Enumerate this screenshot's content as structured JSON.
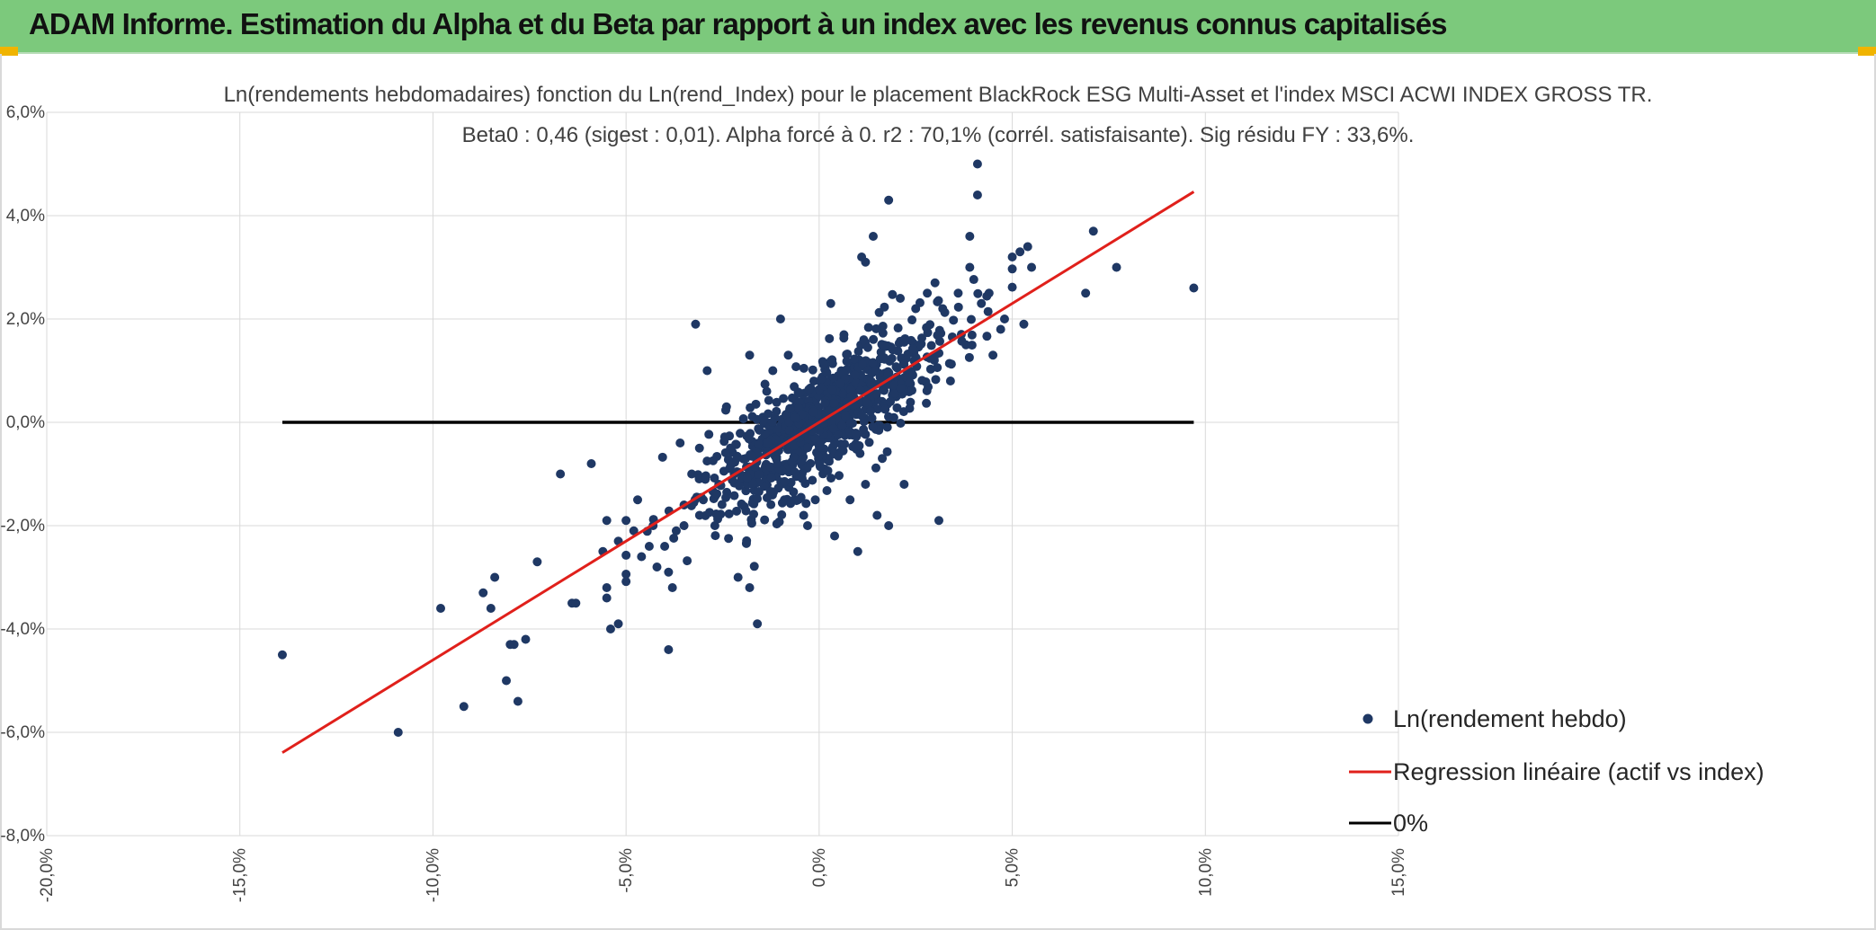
{
  "banner": {
    "title": "ADAM Informe. Estimation du Alpha et du Beta par rapport à un index avec les revenus connus capitalisés",
    "background": "#7cc97c"
  },
  "chart_data": {
    "type": "scatter",
    "title_line1": "Ln(rendements hebdomadaires) fonction du Ln(rend_Index) pour le placement BlackRock ESG Multi-Asset et l'index MSCI ACWI INDEX GROSS TR.",
    "title_line2": "Beta0 : 0,46 (sigest : 0,01). Alpha forcé à 0. r2 : 70,1% (corrél. satisfaisante). Sig résidu FY : 33,6%.",
    "xlim": [
      -0.2,
      0.15
    ],
    "ylim": [
      -0.08,
      0.06
    ],
    "x_ticks": [
      -0.2,
      -0.15,
      -0.1,
      -0.05,
      0.0,
      0.05,
      0.1,
      0.15
    ],
    "x_tick_labels": [
      "-20,0%",
      "-15,0%",
      "-10,0%",
      "-5,0%",
      "0,0%",
      "5,0%",
      "10,0%",
      "15,0%"
    ],
    "y_ticks": [
      0.06,
      0.04,
      0.02,
      0.0,
      -0.02,
      -0.04,
      -0.06,
      -0.08
    ],
    "y_tick_labels": [
      "6,0%",
      "4,0%",
      "2,0%",
      "0,0%",
      "-2,0%",
      "-4,0%",
      "-6,0%",
      "-8,0%"
    ],
    "grid": true,
    "legend_position": "bottom-right",
    "series": [
      {
        "name": "Ln(rendement hebdo)",
        "kind": "points",
        "color": "#1f3864",
        "points": [
          [
            -0.139,
            -0.045
          ],
          [
            -0.109,
            -0.06
          ],
          [
            -0.098,
            -0.036
          ],
          [
            -0.092,
            -0.055
          ],
          [
            -0.087,
            -0.033
          ],
          [
            -0.085,
            -0.036
          ],
          [
            -0.084,
            -0.03
          ],
          [
            -0.081,
            -0.05
          ],
          [
            -0.08,
            -0.043
          ],
          [
            -0.079,
            -0.043
          ],
          [
            -0.078,
            -0.054
          ],
          [
            -0.076,
            -0.042
          ],
          [
            -0.073,
            -0.027
          ],
          [
            -0.067,
            -0.01
          ],
          [
            -0.064,
            -0.035
          ],
          [
            -0.063,
            -0.035
          ],
          [
            -0.059,
            -0.008
          ],
          [
            -0.056,
            -0.025
          ],
          [
            -0.055,
            -0.032
          ],
          [
            -0.055,
            -0.034
          ],
          [
            -0.054,
            -0.04
          ],
          [
            -0.052,
            -0.039
          ],
          [
            -0.055,
            -0.019
          ],
          [
            -0.052,
            -0.023
          ],
          [
            -0.05,
            -0.019
          ],
          [
            -0.048,
            -0.021
          ],
          [
            -0.047,
            -0.015
          ],
          [
            -0.046,
            -0.026
          ],
          [
            -0.044,
            -0.024
          ],
          [
            -0.043,
            -0.02
          ],
          [
            -0.042,
            -0.028
          ],
          [
            -0.04,
            -0.024
          ],
          [
            -0.039,
            -0.029
          ],
          [
            -0.038,
            -0.032
          ],
          [
            -0.036,
            -0.004
          ],
          [
            -0.039,
            -0.044
          ],
          [
            -0.037,
            -0.021
          ],
          [
            -0.035,
            -0.02
          ],
          [
            -0.035,
            -0.016
          ],
          [
            -0.033,
            -0.01
          ],
          [
            -0.032,
            0.019
          ],
          [
            -0.031,
            -0.005
          ],
          [
            -0.03,
            -0.015
          ],
          [
            -0.029,
            0.01
          ],
          [
            -0.027,
            -0.02
          ],
          [
            -0.026,
            -0.012
          ],
          [
            -0.024,
            0.003
          ],
          [
            -0.022,
            -0.01
          ],
          [
            -0.021,
            -0.03
          ],
          [
            -0.019,
            -0.007
          ],
          [
            -0.018,
            0.013
          ],
          [
            -0.018,
            -0.032
          ],
          [
            -0.016,
            -0.039
          ],
          [
            -0.014,
            -0.005
          ],
          [
            -0.012,
            0.01
          ],
          [
            -0.01,
            0.02
          ],
          [
            -0.009,
            -0.015
          ],
          [
            -0.008,
            0.013
          ],
          [
            -0.004,
            -0.018
          ],
          [
            -0.003,
            -0.02
          ],
          [
            -0.001,
            -0.015
          ],
          [
            0.003,
            0.023
          ],
          [
            0.004,
            -0.022
          ],
          [
            0.008,
            -0.015
          ],
          [
            0.01,
            -0.025
          ],
          [
            0.011,
            0.032
          ],
          [
            0.012,
            0.031
          ],
          [
            0.014,
            0.036
          ],
          [
            0.012,
            -0.012
          ],
          [
            0.015,
            -0.018
          ],
          [
            0.018,
            0.043
          ],
          [
            0.018,
            -0.02
          ],
          [
            0.021,
            0.024
          ],
          [
            0.022,
            -0.012
          ],
          [
            0.025,
            0.022
          ],
          [
            0.026,
            0.015
          ],
          [
            0.028,
            0.025
          ],
          [
            0.03,
            0.027
          ],
          [
            0.031,
            -0.019
          ],
          [
            0.032,
            0.022
          ],
          [
            0.034,
            0.008
          ],
          [
            0.036,
            0.025
          ],
          [
            0.038,
            0.015
          ],
          [
            0.039,
            0.03
          ],
          [
            0.039,
            0.036
          ],
          [
            0.041,
            0.05
          ],
          [
            0.041,
            0.044
          ],
          [
            0.042,
            0.023
          ],
          [
            0.044,
            0.025
          ],
          [
            0.045,
            0.013
          ],
          [
            0.047,
            0.018
          ],
          [
            0.048,
            0.02
          ],
          [
            0.05,
            0.032
          ],
          [
            0.052,
            0.033
          ],
          [
            0.053,
            0.019
          ],
          [
            0.054,
            0.034
          ],
          [
            0.055,
            0.03
          ],
          [
            0.069,
            0.025
          ],
          [
            0.071,
            0.037
          ],
          [
            0.077,
            0.03
          ],
          [
            0.097,
            0.026
          ]
        ]
      },
      {
        "name": "Regression linéaire (actif vs index)",
        "kind": "line",
        "color": "#e0201b",
        "beta": 0.46,
        "x_range": [
          -0.139,
          0.097
        ]
      },
      {
        "name": "0%",
        "kind": "line",
        "color": "#000000",
        "y": 0.0,
        "x_range": [
          -0.139,
          0.097
        ]
      }
    ]
  }
}
